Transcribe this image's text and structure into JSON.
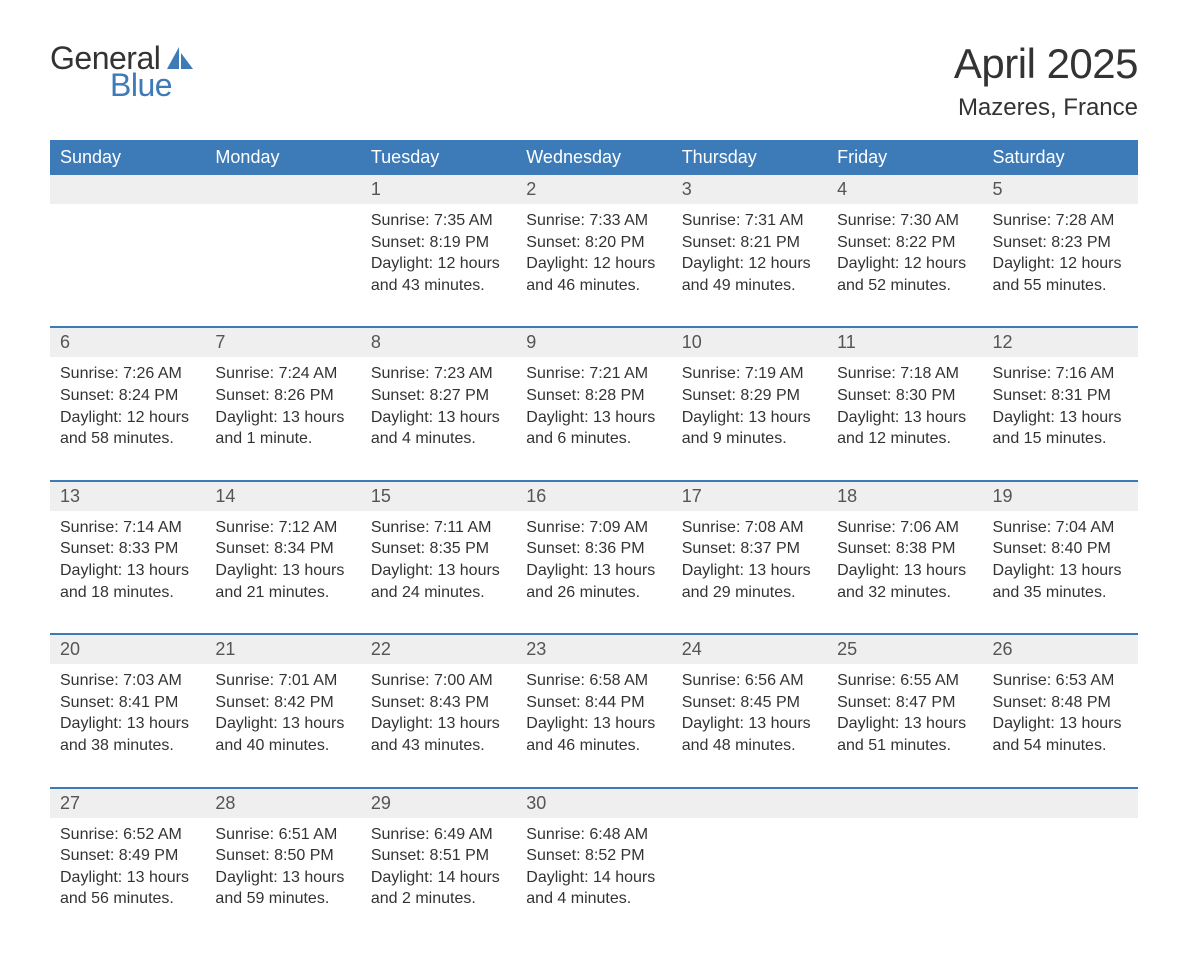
{
  "logo": {
    "text1": "General",
    "text2": "Blue",
    "icon_color": "#3d7ab8"
  },
  "title": "April 2025",
  "location": "Mazeres, France",
  "colors": {
    "header_bg": "#3d7ab8",
    "header_text": "#ffffff",
    "daynum_bg": "#efefef",
    "border": "#3d7ab8",
    "body_text": "#333333"
  },
  "day_names": [
    "Sunday",
    "Monday",
    "Tuesday",
    "Wednesday",
    "Thursday",
    "Friday",
    "Saturday"
  ],
  "weeks": [
    {
      "nums": [
        "",
        "",
        "1",
        "2",
        "3",
        "4",
        "5"
      ],
      "cells": [
        "",
        "",
        "Sunrise: 7:35 AM\nSunset: 8:19 PM\nDaylight: 12 hours and 43 minutes.",
        "Sunrise: 7:33 AM\nSunset: 8:20 PM\nDaylight: 12 hours and 46 minutes.",
        "Sunrise: 7:31 AM\nSunset: 8:21 PM\nDaylight: 12 hours and 49 minutes.",
        "Sunrise: 7:30 AM\nSunset: 8:22 PM\nDaylight: 12 hours and 52 minutes.",
        "Sunrise: 7:28 AM\nSunset: 8:23 PM\nDaylight: 12 hours and 55 minutes."
      ]
    },
    {
      "nums": [
        "6",
        "7",
        "8",
        "9",
        "10",
        "11",
        "12"
      ],
      "cells": [
        "Sunrise: 7:26 AM\nSunset: 8:24 PM\nDaylight: 12 hours and 58 minutes.",
        "Sunrise: 7:24 AM\nSunset: 8:26 PM\nDaylight: 13 hours and 1 minute.",
        "Sunrise: 7:23 AM\nSunset: 8:27 PM\nDaylight: 13 hours and 4 minutes.",
        "Sunrise: 7:21 AM\nSunset: 8:28 PM\nDaylight: 13 hours and 6 minutes.",
        "Sunrise: 7:19 AM\nSunset: 8:29 PM\nDaylight: 13 hours and 9 minutes.",
        "Sunrise: 7:18 AM\nSunset: 8:30 PM\nDaylight: 13 hours and 12 minutes.",
        "Sunrise: 7:16 AM\nSunset: 8:31 PM\nDaylight: 13 hours and 15 minutes."
      ]
    },
    {
      "nums": [
        "13",
        "14",
        "15",
        "16",
        "17",
        "18",
        "19"
      ],
      "cells": [
        "Sunrise: 7:14 AM\nSunset: 8:33 PM\nDaylight: 13 hours and 18 minutes.",
        "Sunrise: 7:12 AM\nSunset: 8:34 PM\nDaylight: 13 hours and 21 minutes.",
        "Sunrise: 7:11 AM\nSunset: 8:35 PM\nDaylight: 13 hours and 24 minutes.",
        "Sunrise: 7:09 AM\nSunset: 8:36 PM\nDaylight: 13 hours and 26 minutes.",
        "Sunrise: 7:08 AM\nSunset: 8:37 PM\nDaylight: 13 hours and 29 minutes.",
        "Sunrise: 7:06 AM\nSunset: 8:38 PM\nDaylight: 13 hours and 32 minutes.",
        "Sunrise: 7:04 AM\nSunset: 8:40 PM\nDaylight: 13 hours and 35 minutes."
      ]
    },
    {
      "nums": [
        "20",
        "21",
        "22",
        "23",
        "24",
        "25",
        "26"
      ],
      "cells": [
        "Sunrise: 7:03 AM\nSunset: 8:41 PM\nDaylight: 13 hours and 38 minutes.",
        "Sunrise: 7:01 AM\nSunset: 8:42 PM\nDaylight: 13 hours and 40 minutes.",
        "Sunrise: 7:00 AM\nSunset: 8:43 PM\nDaylight: 13 hours and 43 minutes.",
        "Sunrise: 6:58 AM\nSunset: 8:44 PM\nDaylight: 13 hours and 46 minutes.",
        "Sunrise: 6:56 AM\nSunset: 8:45 PM\nDaylight: 13 hours and 48 minutes.",
        "Sunrise: 6:55 AM\nSunset: 8:47 PM\nDaylight: 13 hours and 51 minutes.",
        "Sunrise: 6:53 AM\nSunset: 8:48 PM\nDaylight: 13 hours and 54 minutes."
      ]
    },
    {
      "nums": [
        "27",
        "28",
        "29",
        "30",
        "",
        "",
        ""
      ],
      "cells": [
        "Sunrise: 6:52 AM\nSunset: 8:49 PM\nDaylight: 13 hours and 56 minutes.",
        "Sunrise: 6:51 AM\nSunset: 8:50 PM\nDaylight: 13 hours and 59 minutes.",
        "Sunrise: 6:49 AM\nSunset: 8:51 PM\nDaylight: 14 hours and 2 minutes.",
        "Sunrise: 6:48 AM\nSunset: 8:52 PM\nDaylight: 14 hours and 4 minutes.",
        "",
        "",
        ""
      ]
    }
  ]
}
